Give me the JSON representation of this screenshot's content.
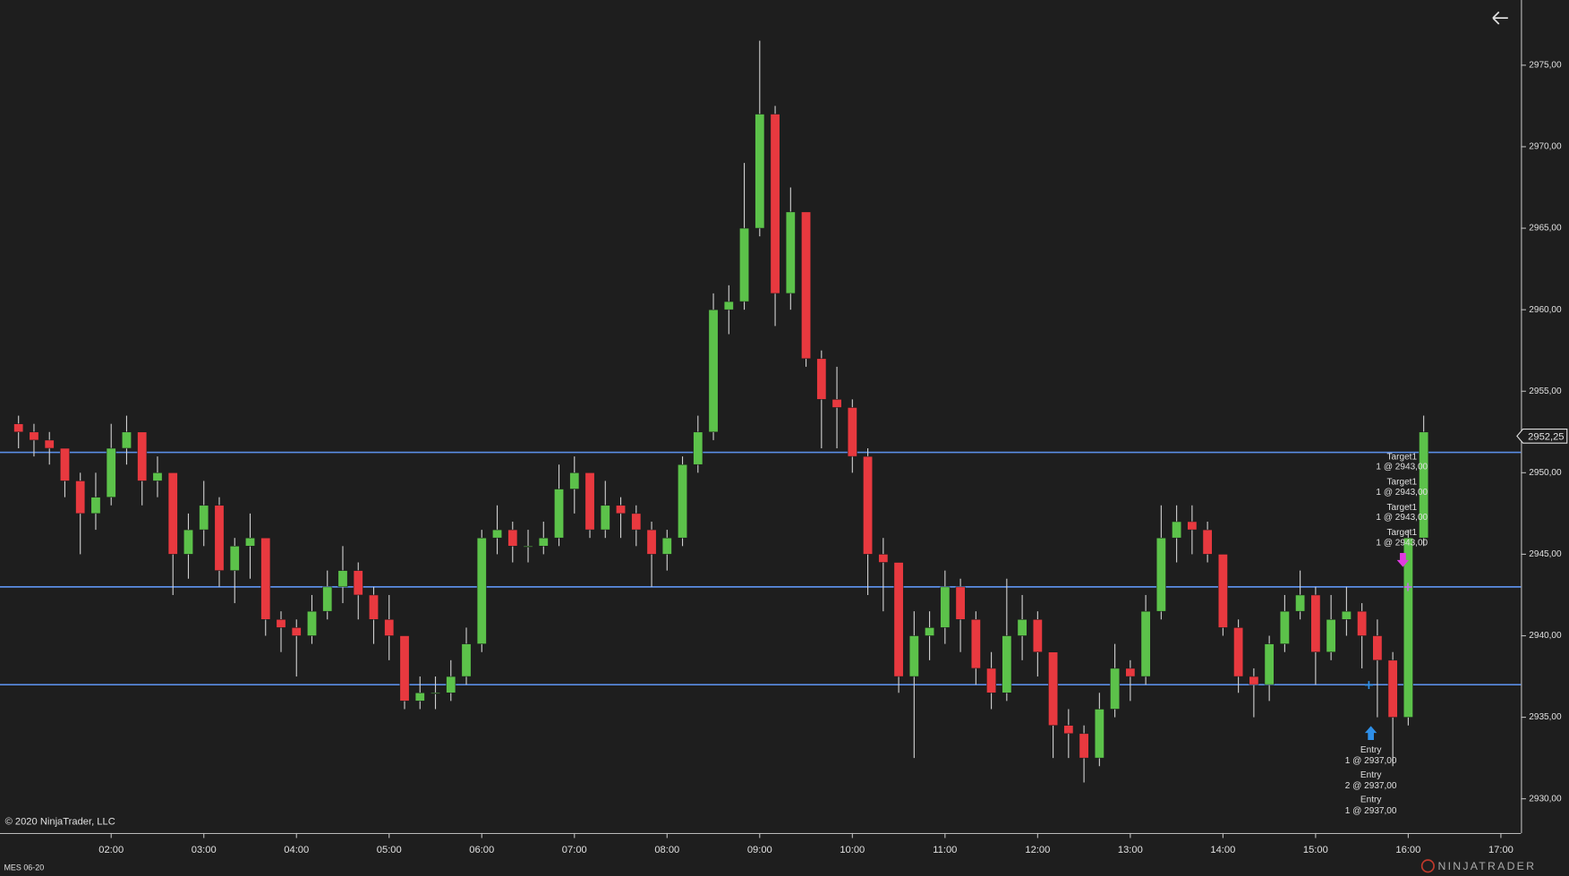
{
  "chart_data": {
    "type": "candlestick",
    "instrument": "MES 06-20",
    "copyright": "© 2020 NinjaTrader, LLC",
    "logo": "NINJATRADER",
    "up_color": "#5cc24a",
    "down_color": "#e8393f",
    "wick_color": "#d0d0d0",
    "line_color": "#5b8ee6",
    "xlim": [
      "00:48",
      "17:13"
    ],
    "xticks": [
      "02:00",
      "03:00",
      "04:00",
      "05:00",
      "06:00",
      "07:00",
      "08:00",
      "09:00",
      "10:00",
      "11:00",
      "12:00",
      "13:00",
      "14:00",
      "15:00",
      "16:00",
      "17:00"
    ],
    "ylim": [
      2927.9,
      2979.0
    ],
    "yticks": [
      {
        "value": 2930,
        "label": "2930,00"
      },
      {
        "value": 2935,
        "label": "2935,00"
      },
      {
        "value": 2940,
        "label": "2940,00"
      },
      {
        "value": 2945,
        "label": "2945,00"
      },
      {
        "value": 2950,
        "label": "2950,00"
      },
      {
        "value": 2955,
        "label": "2955,00"
      },
      {
        "value": 2960,
        "label": "2960,00"
      },
      {
        "value": 2965,
        "label": "2965,00"
      },
      {
        "value": 2970,
        "label": "2970,00"
      },
      {
        "value": 2975,
        "label": "2975,00"
      }
    ],
    "last_price": {
      "value": 2952.25,
      "label": "2952,25"
    },
    "hlines": [
      2951.25,
      2943,
      2937
    ],
    "x": [
      "01:00",
      "01:10",
      "01:20",
      "01:30",
      "01:40",
      "01:50",
      "02:00",
      "02:10",
      "02:20",
      "02:30",
      "02:40",
      "02:50",
      "03:00",
      "03:10",
      "03:20",
      "03:30",
      "03:40",
      "03:50",
      "04:00",
      "04:10",
      "04:20",
      "04:30",
      "04:40",
      "04:50",
      "05:00",
      "05:10",
      "05:20",
      "05:30",
      "05:40",
      "05:50",
      "06:00",
      "06:10",
      "06:20",
      "06:30",
      "06:40",
      "06:50",
      "07:00",
      "07:10",
      "07:20",
      "07:30",
      "07:40",
      "07:50",
      "08:00",
      "08:10",
      "08:20",
      "08:30",
      "08:40",
      "08:50",
      "09:00",
      "09:10",
      "09:20",
      "09:30",
      "09:40",
      "09:50",
      "10:00",
      "10:10",
      "10:20",
      "10:30",
      "10:40",
      "10:50",
      "11:00",
      "11:10",
      "11:20",
      "11:30",
      "11:40",
      "11:50",
      "12:00",
      "12:10",
      "12:20",
      "12:30",
      "12:40",
      "12:50",
      "13:00",
      "13:10",
      "13:20",
      "13:30",
      "13:40",
      "13:50",
      "14:00",
      "14:10",
      "14:20",
      "14:30",
      "14:40",
      "14:50",
      "15:00",
      "15:10",
      "15:20",
      "15:30",
      "15:40",
      "15:50",
      "16:00",
      "16:10"
    ],
    "open": [
      2953,
      2952.5,
      2952,
      2951.5,
      2949.5,
      2947.5,
      2948.5,
      2951.5,
      2952.5,
      2949.5,
      2950,
      2945,
      2946.5,
      2948,
      2944,
      2945.5,
      2946,
      2941,
      2940.5,
      2940,
      2941.5,
      2943,
      2944,
      2942.5,
      2941,
      2940,
      2936,
      2936.5,
      2936.5,
      2937.5,
      2939.5,
      2946,
      2946.5,
      2945.5,
      2945.5,
      2946,
      2949,
      2950,
      2946.5,
      2948,
      2947.5,
      2946.5,
      2945,
      2946,
      2950.5,
      2952.5,
      2960,
      2960.5,
      2965,
      2972,
      2961,
      2966,
      2957,
      2954.5,
      2954,
      2951,
      2945,
      2944.5,
      2937.5,
      2940,
      2940.5,
      2943,
      2941,
      2938,
      2936.5,
      2940,
      2941,
      2939,
      2934.5,
      2934,
      2932.5,
      2935.5,
      2938,
      2937.5,
      2941.5,
      2946,
      2947,
      2946.5,
      2945,
      2940.5,
      2937.5,
      2937,
      2939.5,
      2941.5,
      2942.5,
      2939,
      2941,
      2941.5,
      2940,
      2938.5,
      2935,
      2946
    ],
    "high": [
      2953.5,
      2953,
      2952.5,
      2951.5,
      2950,
      2950,
      2953,
      2953.5,
      2952.5,
      2951,
      2950,
      2947.5,
      2949.5,
      2948.5,
      2946,
      2947.5,
      2946,
      2941.5,
      2941,
      2942.5,
      2944,
      2945.5,
      2944.5,
      2943,
      2942.5,
      2940,
      2937.5,
      2937.5,
      2938.5,
      2940.5,
      2946.5,
      2948,
      2947,
      2946.5,
      2947,
      2950.5,
      2951,
      2950,
      2949.5,
      2948.5,
      2948,
      2947,
      2946.5,
      2951,
      2953.5,
      2961,
      2961.5,
      2969,
      2976.5,
      2972.5,
      2967.5,
      2966,
      2957.5,
      2956.5,
      2954.5,
      2951.5,
      2946,
      2944.5,
      2941.5,
      2941.5,
      2944,
      2943.5,
      2941.5,
      2939,
      2943.5,
      2942.5,
      2941.5,
      2939,
      2935.5,
      2934.5,
      2936.5,
      2939.5,
      2938.5,
      2942.5,
      2948,
      2948,
      2948,
      2947,
      2945,
      2941,
      2938,
      2940,
      2942.5,
      2944,
      2943,
      2942.5,
      2943,
      2942,
      2941,
      2939,
      2946.5,
      2953.5
    ],
    "low": [
      2951.5,
      2951,
      2950.5,
      2948.5,
      2945,
      2946.5,
      2948,
      2950.5,
      2948,
      2948.5,
      2942.5,
      2943.5,
      2945.5,
      2943,
      2942,
      2943.5,
      2940,
      2939,
      2937.5,
      2939.5,
      2941,
      2942,
      2941,
      2939.5,
      2938.5,
      2935.5,
      2935.5,
      2935.5,
      2936,
      2937,
      2939,
      2945,
      2944.5,
      2944.5,
      2945,
      2945.5,
      2947.5,
      2946,
      2946,
      2946,
      2945.5,
      2943,
      2944,
      2945.5,
      2950,
      2952,
      2958.5,
      2960,
      2964.5,
      2959,
      2960,
      2956.5,
      2951.5,
      2951.5,
      2950,
      2942.5,
      2941.5,
      2936.5,
      2932.5,
      2938.5,
      2939.5,
      2939,
      2937,
      2935.5,
      2936,
      2938.5,
      2937.5,
      2932.5,
      2932.5,
      2931,
      2932,
      2935,
      2936,
      2937,
      2941,
      2944.5,
      2945,
      2944.5,
      2940,
      2936.5,
      2935,
      2936,
      2939,
      2941,
      2937,
      2938.5,
      2940,
      2938,
      2935,
      2932,
      2934.5,
      2945.5
    ],
    "close": [
      2952.5,
      2952,
      2951.5,
      2949.5,
      2947.5,
      2948.5,
      2951.5,
      2952.5,
      2949.5,
      2950,
      2945,
      2946.5,
      2948,
      2944,
      2945.5,
      2946,
      2941,
      2940.5,
      2940,
      2941.5,
      2943,
      2944,
      2942.5,
      2941,
      2940,
      2936,
      2936.5,
      2936.5,
      2937.5,
      2939.5,
      2946,
      2946.5,
      2945.5,
      2945.5,
      2946,
      2949,
      2950,
      2946.5,
      2948,
      2947.5,
      2946.5,
      2945,
      2946,
      2950.5,
      2952.5,
      2960,
      2960.5,
      2965,
      2972,
      2961,
      2966,
      2957,
      2954.5,
      2954,
      2951,
      2945,
      2944.5,
      2937.5,
      2940,
      2940.5,
      2943,
      2941,
      2938,
      2936.5,
      2940,
      2941,
      2939,
      2934.5,
      2934,
      2932.5,
      2935.5,
      2938,
      2937.5,
      2941.5,
      2946,
      2947,
      2946.5,
      2945,
      2940.5,
      2937.5,
      2937,
      2939.5,
      2941.5,
      2942.5,
      2939,
      2941,
      2941.5,
      2940,
      2938.5,
      2935,
      2946,
      2952.5
    ],
    "targets": [
      {
        "name": "Target1",
        "detail": "1 @ 2943,00"
      },
      {
        "name": "Target1",
        "detail": "1 @ 2943,00"
      },
      {
        "name": "Target1",
        "detail": "1 @ 2943,00"
      },
      {
        "name": "Target1",
        "detail": "1 @ 2943,00"
      }
    ],
    "entries": [
      {
        "name": "Entry",
        "detail": "1 @ 2937,00"
      },
      {
        "name": "Entry",
        "detail": "2 @ 2937,00"
      },
      {
        "name": "Entry",
        "detail": "1 @ 2937,00"
      }
    ]
  }
}
